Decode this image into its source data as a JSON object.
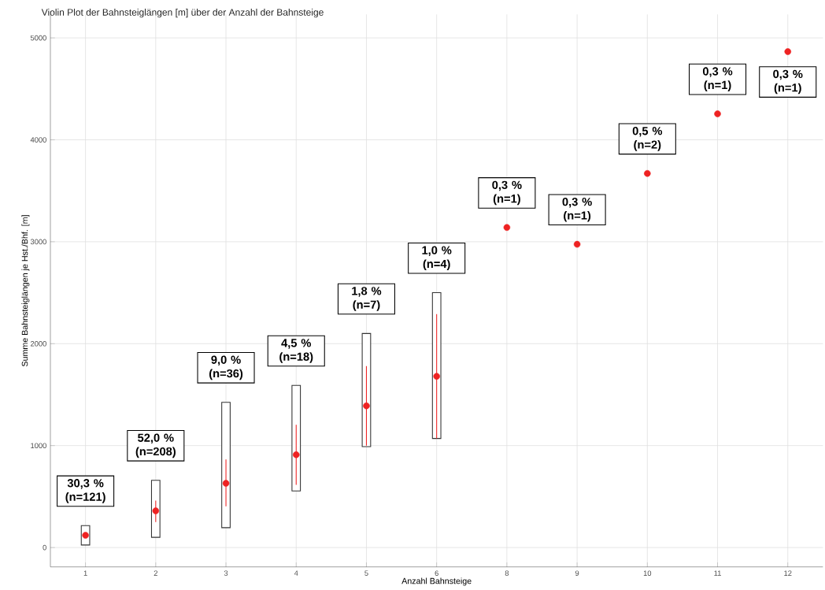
{
  "chart_data": {
    "type": "bar",
    "title": "Violin Plot der Bahnsteiglängen [m] über der Anzahl der Bahnsteige",
    "xlabel": "Anzahl Bahnsteige",
    "ylabel": "Summe Bahnsteiglängen je Hst./Bhf. [m]",
    "categories": [
      "1",
      "2",
      "3",
      "4",
      "5",
      "6",
      "8",
      "9",
      "10",
      "11",
      "12"
    ],
    "series": [
      {
        "color": "#333333",
        "base": [
          25,
          100,
          195,
          555,
          990,
          1070,
          null,
          null,
          null,
          null,
          null
        ],
        "values": [
          190,
          560,
          1230,
          1035,
          1110,
          1430,
          null,
          null,
          null,
          null,
          null
        ]
      },
      {
        "type": "scatter",
        "color": "#ee2222",
        "values": [
          120,
          360,
          630,
          910,
          1390,
          1680,
          3140,
          2975,
          3670,
          4255,
          4865
        ],
        "errors": [
          null,
          [
            250,
            460
          ],
          [
            405,
            865
          ],
          [
            615,
            1205
          ],
          [
            1000,
            1780
          ],
          [
            1070,
            2290
          ],
          null,
          null,
          null,
          null,
          null
        ]
      }
    ],
    "ylim": [
      -190,
      5230
    ],
    "yticks": [
      0,
      1000,
      2000,
      3000,
      4000,
      5000
    ],
    "grid": true,
    "annotations": [
      "30,3 % (n=121)",
      "52,0 % (n=208)",
      "9,0 % (n=36)",
      "4,5 % (n=18)",
      "1,8 % (n=7)",
      "1,0 % (n=4)",
      "0,3 % (n=1)",
      "0,3 % (n=1)",
      "0,5 % (n=2)",
      "0,3 % (n=1)",
      "0,3 % (n=1)"
    ]
  }
}
